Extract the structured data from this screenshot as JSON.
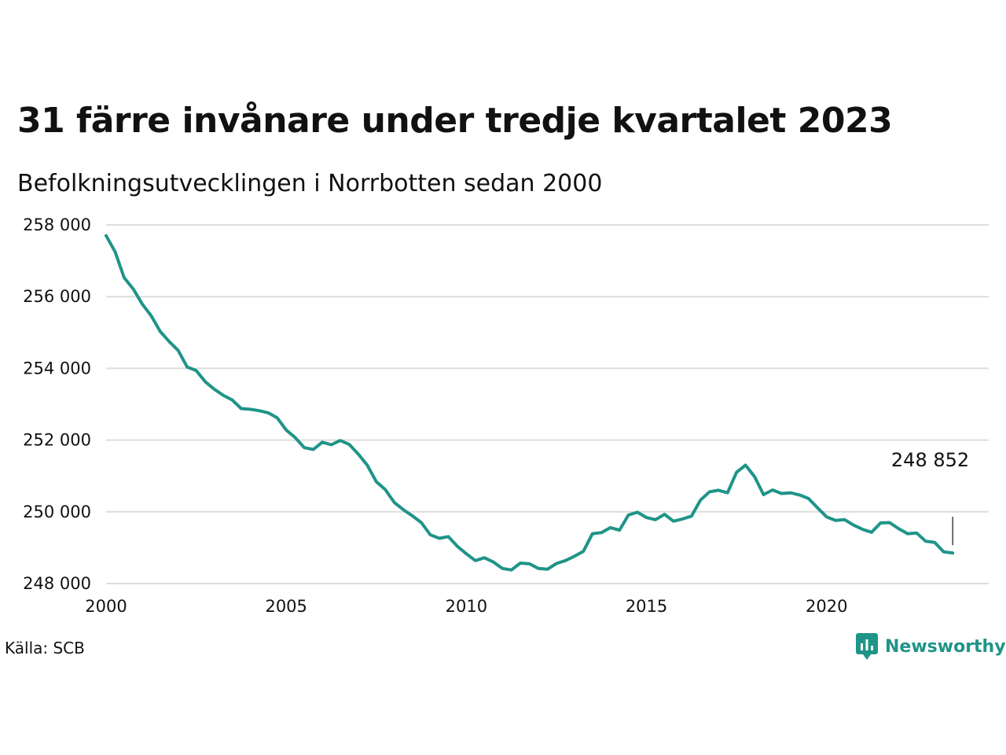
{
  "title": "31 färre invånare under tredje kvartalet 2023",
  "subtitle": "Befolkningsutvecklingen i Norrbotten sedan 2000",
  "source": "Källa: SCB",
  "brand": "Newsworthy",
  "colors": {
    "line": "#1f9488",
    "grid": "#dddddd",
    "text": "#111111",
    "brand": "#1f9488"
  },
  "chart_data": {
    "type": "line",
    "title": "31 färre invånare under tredje kvartalet 2023",
    "subtitle": "Befolkningsutvecklingen i Norrbotten sedan 2000",
    "xlabel": "",
    "ylabel": "",
    "xlim": [
      2000,
      2024.5
    ],
    "ylim": [
      248000,
      258000
    ],
    "x_ticks": [
      2000,
      2005,
      2010,
      2015,
      2020
    ],
    "y_ticks": [
      248000,
      250000,
      252000,
      254000,
      256000,
      258000
    ],
    "y_tick_labels": [
      "248 000",
      "250 000",
      "252 000",
      "254 000",
      "256 000",
      "258 000"
    ],
    "grid": "horizontal",
    "end_label": "248 852",
    "series": [
      {
        "values": [
          [
            2000.0,
            257700
          ],
          [
            2000.25,
            257250
          ],
          [
            2000.5,
            256530
          ],
          [
            2000.75,
            256220
          ],
          [
            2001.0,
            255800
          ],
          [
            2001.25,
            255470
          ],
          [
            2001.5,
            255030
          ],
          [
            2001.75,
            254750
          ],
          [
            2002.0,
            254500
          ],
          [
            2002.25,
            254040
          ],
          [
            2002.5,
            253940
          ],
          [
            2002.75,
            253630
          ],
          [
            2003.0,
            253420
          ],
          [
            2003.25,
            253250
          ],
          [
            2003.5,
            253120
          ],
          [
            2003.75,
            252880
          ],
          [
            2004.0,
            252860
          ],
          [
            2004.25,
            252820
          ],
          [
            2004.5,
            252760
          ],
          [
            2004.75,
            252620
          ],
          [
            2005.0,
            252280
          ],
          [
            2005.25,
            252070
          ],
          [
            2005.5,
            251790
          ],
          [
            2005.75,
            251740
          ],
          [
            2006.0,
            251940
          ],
          [
            2006.25,
            251870
          ],
          [
            2006.5,
            251990
          ],
          [
            2006.75,
            251880
          ],
          [
            2007.0,
            251610
          ],
          [
            2007.25,
            251300
          ],
          [
            2007.5,
            250840
          ],
          [
            2007.75,
            250620
          ],
          [
            2008.0,
            250260
          ],
          [
            2008.25,
            250060
          ],
          [
            2008.5,
            249890
          ],
          [
            2008.75,
            249700
          ],
          [
            2009.0,
            249360
          ],
          [
            2009.25,
            249260
          ],
          [
            2009.5,
            249310
          ],
          [
            2009.75,
            249040
          ],
          [
            2010.0,
            248830
          ],
          [
            2010.25,
            248640
          ],
          [
            2010.5,
            248720
          ],
          [
            2010.75,
            248600
          ],
          [
            2011.0,
            248420
          ],
          [
            2011.25,
            248380
          ],
          [
            2011.5,
            248570
          ],
          [
            2011.75,
            248550
          ],
          [
            2012.0,
            248420
          ],
          [
            2012.25,
            248400
          ],
          [
            2012.5,
            248560
          ],
          [
            2012.75,
            248640
          ],
          [
            2013.0,
            248760
          ],
          [
            2013.25,
            248900
          ],
          [
            2013.5,
            249390
          ],
          [
            2013.75,
            249420
          ],
          [
            2014.0,
            249560
          ],
          [
            2014.25,
            249490
          ],
          [
            2014.5,
            249910
          ],
          [
            2014.75,
            249990
          ],
          [
            2015.0,
            249840
          ],
          [
            2015.25,
            249780
          ],
          [
            2015.5,
            249930
          ],
          [
            2015.75,
            249740
          ],
          [
            2016.0,
            249800
          ],
          [
            2016.25,
            249880
          ],
          [
            2016.5,
            250330
          ],
          [
            2016.75,
            250560
          ],
          [
            2017.0,
            250600
          ],
          [
            2017.25,
            250530
          ],
          [
            2017.5,
            251100
          ],
          [
            2017.75,
            251300
          ],
          [
            2018.0,
            250980
          ],
          [
            2018.25,
            250480
          ],
          [
            2018.5,
            250610
          ],
          [
            2018.75,
            250510
          ],
          [
            2019.0,
            250530
          ],
          [
            2019.25,
            250470
          ],
          [
            2019.5,
            250370
          ],
          [
            2019.75,
            250110
          ],
          [
            2020.0,
            249860
          ],
          [
            2020.25,
            249760
          ],
          [
            2020.5,
            249780
          ],
          [
            2020.75,
            249630
          ],
          [
            2021.0,
            249510
          ],
          [
            2021.25,
            249430
          ],
          [
            2021.5,
            249690
          ],
          [
            2021.75,
            249700
          ],
          [
            2022.0,
            249530
          ],
          [
            2022.25,
            249390
          ],
          [
            2022.5,
            249410
          ],
          [
            2022.75,
            249180
          ],
          [
            2023.0,
            249150
          ],
          [
            2023.25,
            248883
          ],
          [
            2023.5,
            248852
          ]
        ]
      }
    ]
  }
}
